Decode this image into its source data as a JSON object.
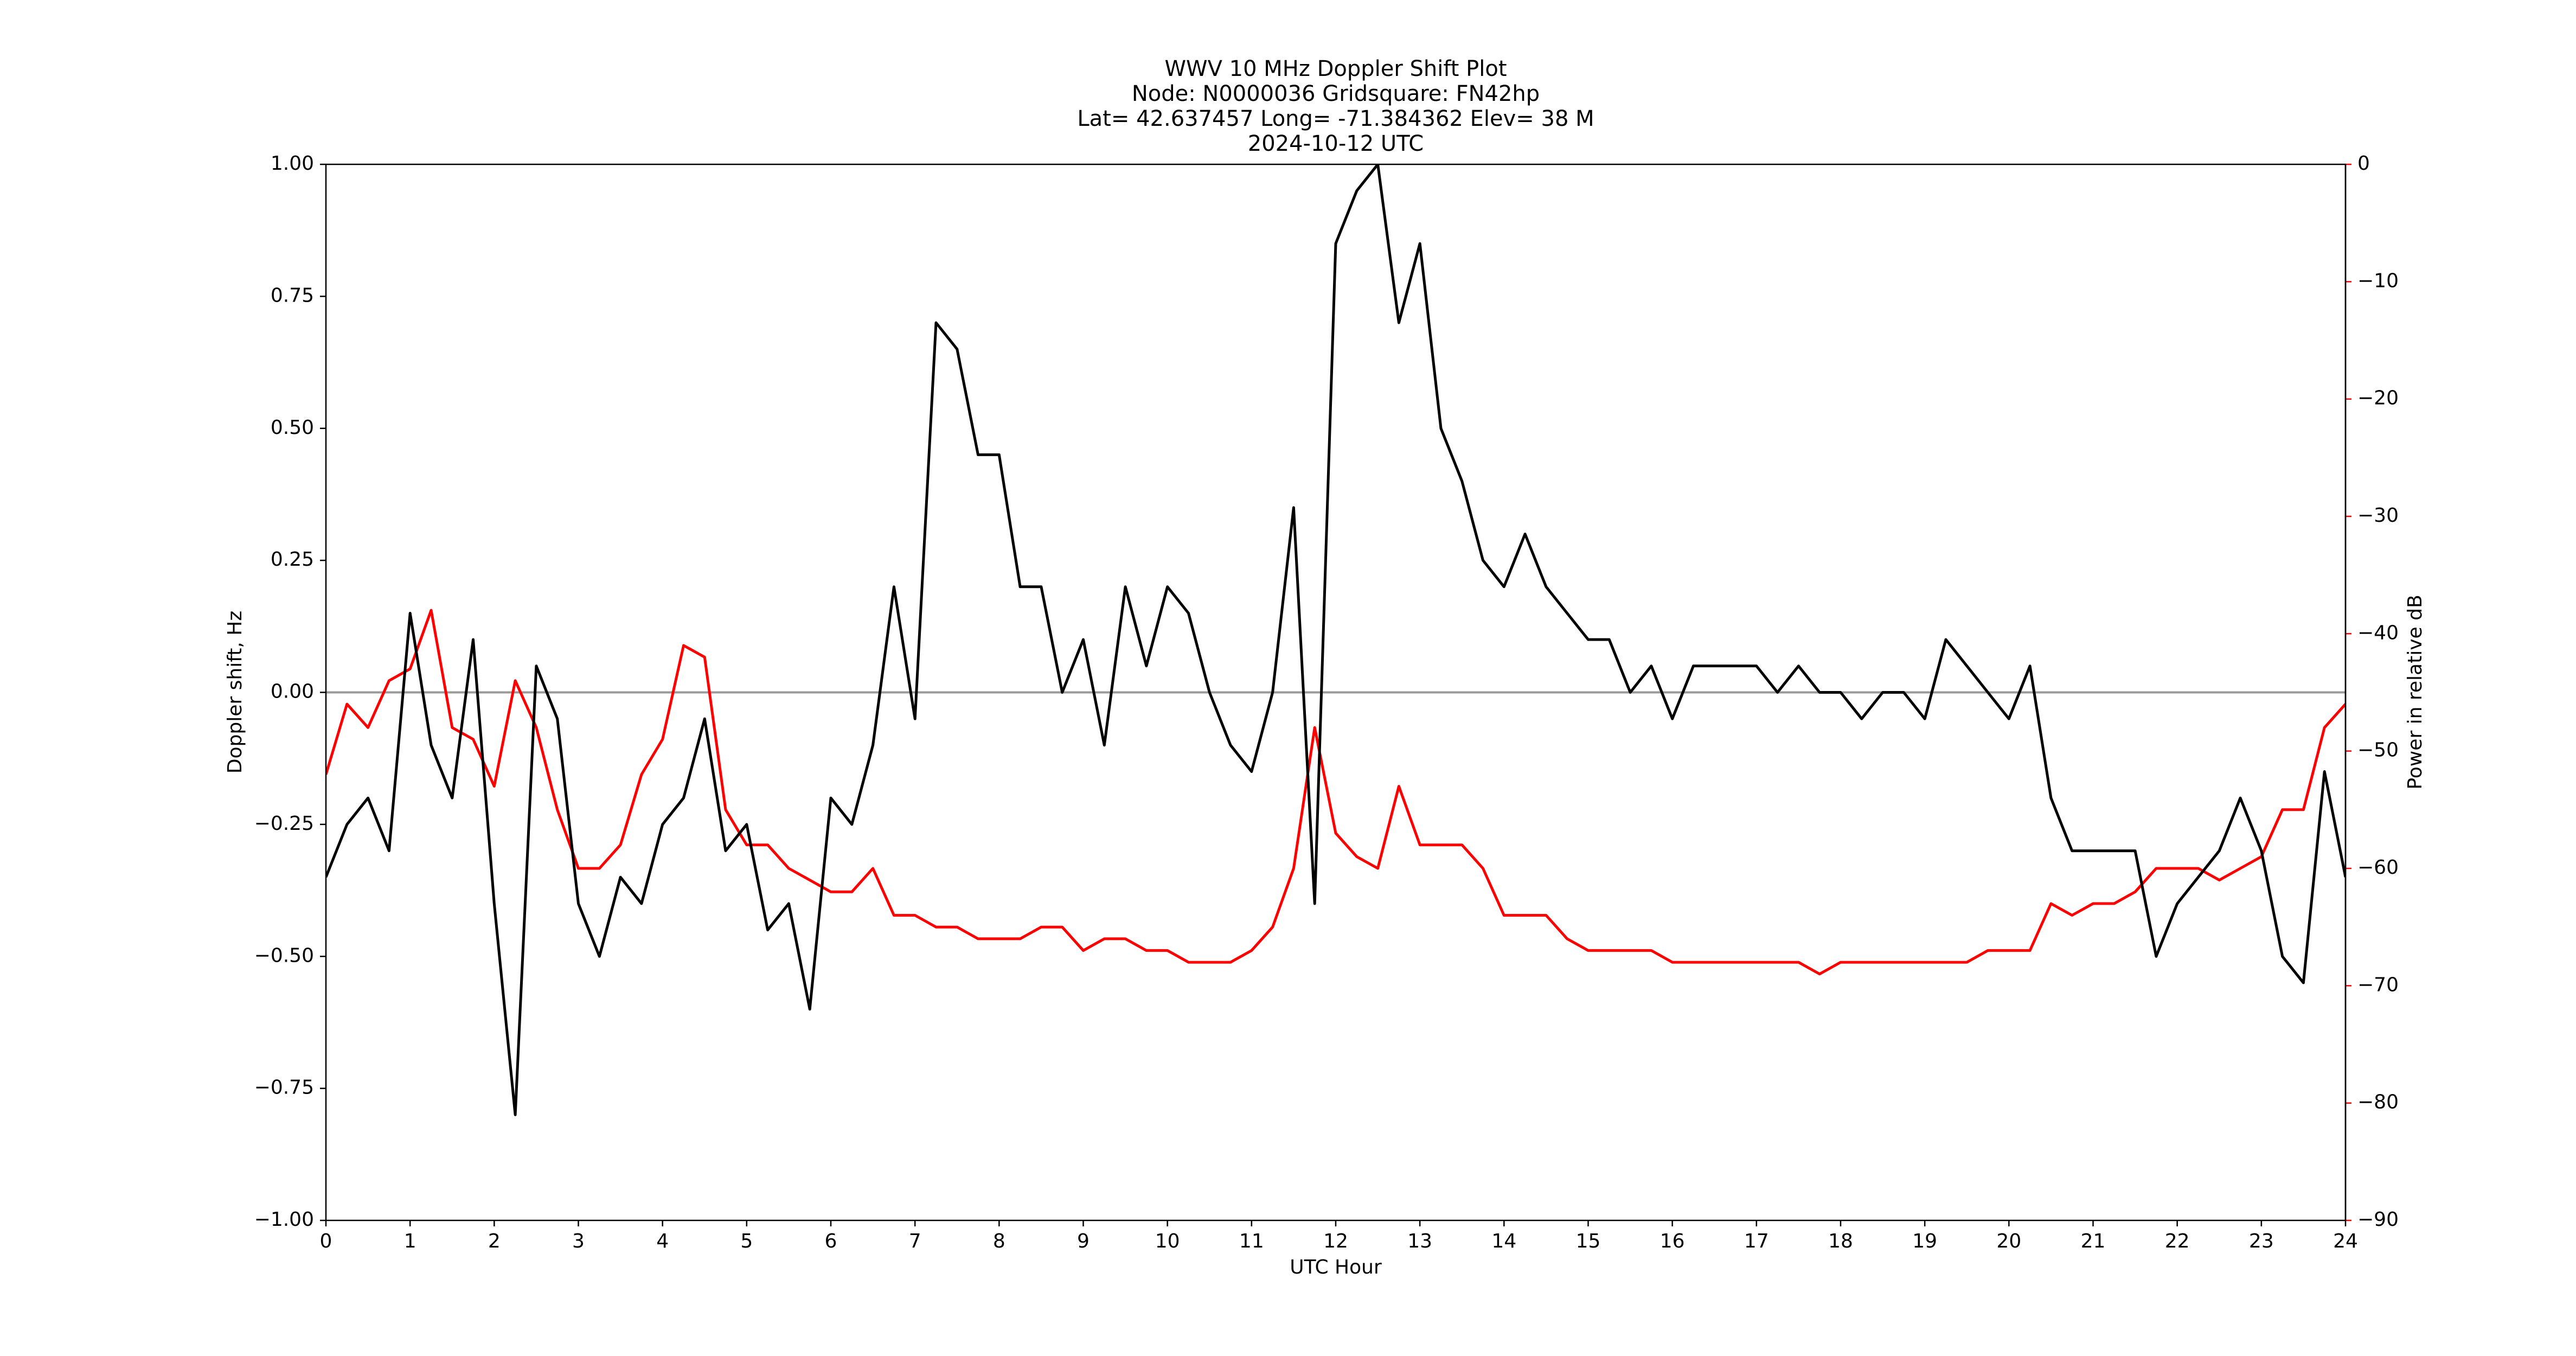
{
  "chart_data": {
    "type": "line",
    "title_lines": [
      "WWV 10 MHz Doppler Shift Plot",
      "Node:  N0000036     Gridsquare:  FN42hp",
      "Lat= 42.637457    Long= -71.384362    Elev= 38 M",
      "2024-10-12  UTC"
    ],
    "xlabel": "UTC Hour",
    "ylabel": "Doppler shift, Hz",
    "y2label": "Power in relative dB",
    "y2color": "#ff0000",
    "hline": 0,
    "hline_color": "#999999",
    "xlim": [
      0,
      24
    ],
    "xticks": [
      0,
      1,
      2,
      3,
      4,
      5,
      6,
      7,
      8,
      9,
      10,
      11,
      12,
      13,
      14,
      15,
      16,
      17,
      18,
      19,
      20,
      21,
      22,
      23,
      24
    ],
    "ylim": [
      -1,
      1
    ],
    "yticks": [
      {
        "value": -1,
        "label": "−1.00"
      },
      {
        "value": -0.75,
        "label": "−0.75"
      },
      {
        "value": -0.5,
        "label": "−0.50"
      },
      {
        "value": -0.25,
        "label": "−0.25"
      },
      {
        "value": 0,
        "label": "0.00"
      },
      {
        "value": 0.25,
        "label": "0.25"
      },
      {
        "value": 0.5,
        "label": "0.50"
      },
      {
        "value": 0.75,
        "label": "0.75"
      },
      {
        "value": 1,
        "label": "1.00"
      }
    ],
    "y2lim": [
      -90,
      0
    ],
    "y2ticks": [
      {
        "value": -90,
        "label": "−90"
      },
      {
        "value": -80,
        "label": "−80"
      },
      {
        "value": -70,
        "label": "−70"
      },
      {
        "value": -60,
        "label": "−60"
      },
      {
        "value": -50,
        "label": "−50"
      },
      {
        "value": -40,
        "label": "−40"
      },
      {
        "value": -30,
        "label": "−30"
      },
      {
        "value": -20,
        "label": "−20"
      },
      {
        "value": -10,
        "label": "−10"
      },
      0
    ],
    "x": [
      0,
      0.25,
      0.5,
      0.75,
      1,
      1.25,
      1.5,
      1.75,
      2,
      2.25,
      2.5,
      2.75,
      3,
      3.25,
      3.5,
      3.75,
      4,
      4.25,
      4.5,
      4.75,
      5,
      5.25,
      5.5,
      5.75,
      6,
      6.25,
      6.5,
      6.75,
      7,
      7.25,
      7.5,
      7.75,
      8,
      8.25,
      8.5,
      8.75,
      9,
      9.25,
      9.5,
      9.75,
      10,
      10.25,
      10.5,
      10.75,
      11,
      11.25,
      11.5,
      11.75,
      12,
      12.25,
      12.5,
      12.75,
      13,
      13.25,
      13.5,
      13.75,
      14,
      14.25,
      14.5,
      14.75,
      15,
      15.25,
      15.5,
      15.75,
      16,
      16.25,
      16.5,
      16.75,
      17,
      17.25,
      17.5,
      17.75,
      18,
      18.25,
      18.5,
      18.75,
      19,
      19.25,
      19.5,
      19.75,
      20,
      20.25,
      20.5,
      20.75,
      21,
      21.25,
      21.5,
      21.75,
      22,
      22.25,
      22.5,
      22.75,
      23,
      23.25,
      23.5,
      23.75,
      24
    ],
    "series": [
      {
        "color": "#000000",
        "values": [
          -0.35,
          -0.25,
          -0.2,
          -0.3,
          0.15,
          -0.1,
          -0.2,
          0.1,
          -0.4,
          -0.8,
          0.05,
          -0.05,
          -0.4,
          -0.5,
          -0.35,
          -0.4,
          -0.25,
          -0.2,
          -0.05,
          -0.3,
          -0.25,
          -0.45,
          -0.4,
          -0.6,
          -0.2,
          -0.25,
          -0.1,
          0.2,
          -0.05,
          0.7,
          0.65,
          0.45,
          0.45,
          0.2,
          0.2,
          0,
          0.1,
          -0.1,
          0.2,
          0.05,
          0.2,
          0.15,
          0,
          -0.1,
          -0.15,
          0,
          0.35,
          -0.4,
          0.85,
          0.95,
          1,
          0.7,
          0.85,
          0.5,
          0.4,
          0.25,
          0.2,
          0.3,
          0.2,
          0.15,
          0.1,
          0.1,
          0,
          0.05,
          -0.05,
          0.05,
          0.05,
          0.05,
          0.05,
          0,
          0.05,
          0,
          0,
          -0.05,
          0,
          0,
          -0.05,
          0.1,
          0.05,
          0,
          -0.05,
          0.05,
          -0.2,
          -0.3,
          -0.3,
          -0.3,
          -0.3,
          -0.5,
          -0.4,
          -0.35,
          -0.3,
          -0.2,
          -0.3,
          -0.5,
          -0.55,
          -0.15,
          -0.35
        ]
      },
      {
        "color": "#ff0000",
        "axis": "y2",
        "values": [
          -52,
          -46,
          -48,
          -44,
          -43,
          -38,
          -48,
          -49,
          -53,
          -44,
          -48,
          -55,
          -60,
          -60,
          -58,
          -52,
          -49,
          -41,
          -42,
          -55,
          -58,
          -58,
          -60,
          -61,
          -62,
          -62,
          -60,
          -64,
          -64,
          -65,
          -65,
          -66,
          -66,
          -66,
          -65,
          -65,
          -67,
          -66,
          -66,
          -67,
          -67,
          -68,
          -68,
          -68,
          -67,
          -65,
          -60,
          -48,
          -57,
          -59,
          -60,
          -53,
          -58,
          -58,
          -58,
          -60,
          -64,
          -64,
          -64,
          -66,
          -67,
          -67,
          -67,
          -67,
          -68,
          -68,
          -68,
          -68,
          -68,
          -68,
          -68,
          -69,
          -68,
          -68,
          -68,
          -68,
          -68,
          -68,
          -68,
          -67,
          -67,
          -67,
          -63,
          -64,
          -63,
          -63,
          -62,
          -60,
          -60,
          -60,
          -61,
          -60,
          -59,
          -55,
          -55,
          -48,
          -46
        ]
      }
    ]
  }
}
